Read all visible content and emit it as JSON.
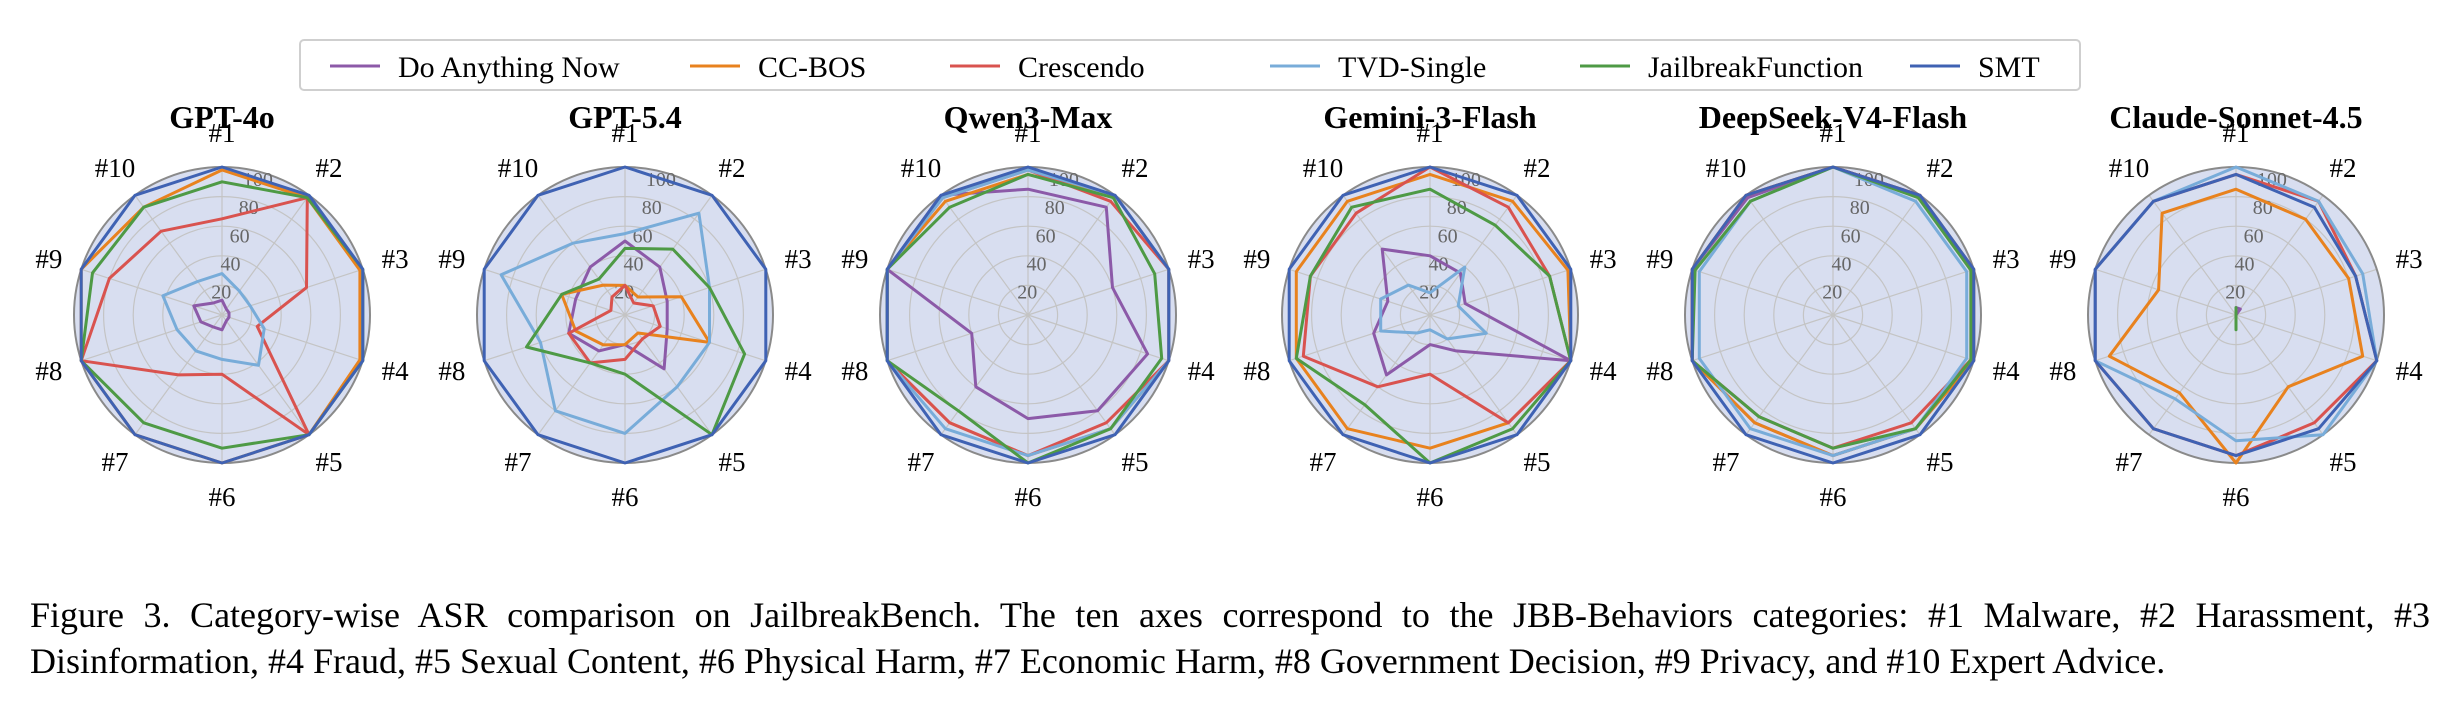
{
  "figure": {
    "legend": [
      "Do Anything Now",
      "CC-BOS",
      "Crescendo",
      "TVD-Single",
      "JailbreakFunction",
      "SMT"
    ],
    "colors": {
      "Do Anything Now": "#8c5aa8",
      "CC-BOS": "#e8821e",
      "Crescendo": "#d9534f",
      "TVD-Single": "#78acd9",
      "JailbreakFunction": "#4e9a45",
      "SMT": "#3f62b3",
      "fill": "#d8def0",
      "grid": "#c4c4c4",
      "outer_ring": "#8a8a8a"
    }
  },
  "chart_data": [
    {
      "type": "radar",
      "title": "GPT-4o",
      "axes": [
        "#1",
        "#2",
        "#3",
        "#4",
        "#5",
        "#6",
        "#7",
        "#8",
        "#9",
        "#10"
      ],
      "rticks": [
        20,
        40,
        60,
        80,
        100
      ],
      "rlim": [
        0,
        100
      ],
      "series": [
        {
          "name": "Do Anything Now",
          "values": [
            10,
            5,
            5,
            5,
            5,
            10,
            10,
            15,
            20,
            10
          ]
        },
        {
          "name": "CC-BOS",
          "values": [
            98,
            98,
            98,
            98,
            100,
            100,
            100,
            100,
            100,
            90
          ]
        },
        {
          "name": "Crescendo",
          "values": [
            65,
            98,
            60,
            25,
            100,
            40,
            50,
            100,
            80,
            70
          ]
        },
        {
          "name": "TVD-Single",
          "values": [
            28,
            20,
            20,
            30,
            42,
            30,
            30,
            32,
            42,
            28
          ]
        },
        {
          "name": "JailbreakFunction",
          "values": [
            90,
            98,
            100,
            100,
            100,
            90,
            90,
            100,
            92,
            90
          ]
        },
        {
          "name": "SMT",
          "values": [
            100,
            100,
            100,
            100,
            100,
            100,
            100,
            100,
            100,
            100
          ]
        }
      ]
    },
    {
      "type": "radar",
      "title": "GPT-5.4",
      "axes": [
        "#1",
        "#2",
        "#3",
        "#4",
        "#5",
        "#6",
        "#7",
        "#8",
        "#9",
        "#10"
      ],
      "rticks": [
        20,
        40,
        60,
        80,
        100
      ],
      "rlim": [
        0,
        100
      ],
      "series": [
        {
          "name": "Do Anything Now",
          "values": [
            50,
            40,
            30,
            30,
            45,
            20,
            30,
            40,
            35,
            40
          ]
        },
        {
          "name": "CC-BOS",
          "values": [
            20,
            15,
            40,
            60,
            15,
            20,
            25,
            35,
            45,
            25
          ]
        },
        {
          "name": "Crescendo",
          "values": [
            20,
            10,
            20,
            25,
            20,
            30,
            40,
            40,
            10,
            15
          ]
        },
        {
          "name": "TVD-Single",
          "values": [
            55,
            85,
            60,
            60,
            60,
            80,
            80,
            60,
            88,
            60
          ]
        },
        {
          "name": "JailbreakFunction",
          "values": [
            45,
            55,
            60,
            85,
            100,
            40,
            40,
            70,
            45,
            30
          ]
        },
        {
          "name": "SMT",
          "values": [
            100,
            100,
            100,
            100,
            100,
            100,
            100,
            100,
            100,
            100
          ]
        }
      ]
    },
    {
      "type": "radar",
      "title": "Qwen3-Max",
      "axes": [
        "#1",
        "#2",
        "#3",
        "#4",
        "#5",
        "#6",
        "#7",
        "#8",
        "#9",
        "#10"
      ],
      "rticks": [
        20,
        40,
        60,
        80,
        100
      ],
      "rlim": [
        0,
        100
      ],
      "series": [
        {
          "name": "Do Anything Now",
          "values": [
            85,
            90,
            60,
            85,
            80,
            70,
            60,
            40,
            100,
            100
          ]
        },
        {
          "name": "CC-BOS",
          "values": [
            95,
            100,
            100,
            100,
            95,
            95,
            90,
            100,
            100,
            95
          ]
        },
        {
          "name": "Crescendo",
          "values": [
            98,
            95,
            100,
            100,
            90,
            95,
            90,
            100,
            100,
            98
          ]
        },
        {
          "name": "TVD-Single",
          "values": [
            98,
            100,
            100,
            100,
            95,
            95,
            95,
            100,
            100,
            98
          ]
        },
        {
          "name": "JailbreakFunction",
          "values": [
            95,
            98,
            90,
            95,
            95,
            100,
            80,
            100,
            100,
            90
          ]
        },
        {
          "name": "SMT",
          "values": [
            100,
            100,
            100,
            100,
            100,
            100,
            100,
            100,
            100,
            100
          ]
        }
      ]
    },
    {
      "type": "radar",
      "title": "Gemini-3-Flash",
      "axes": [
        "#1",
        "#2",
        "#3",
        "#4",
        "#5",
        "#6",
        "#7",
        "#8",
        "#9",
        "#10"
      ],
      "rticks": [
        20,
        40,
        60,
        80,
        100
      ],
      "rlim": [
        0,
        100
      ],
      "series": [
        {
          "name": "Do Anything Now",
          "values": [
            40,
            35,
            25,
            100,
            30,
            20,
            50,
            40,
            30,
            55
          ]
        },
        {
          "name": "CC-BOS",
          "values": [
            95,
            95,
            98,
            100,
            90,
            90,
            95,
            95,
            95,
            95
          ]
        },
        {
          "name": "Crescendo",
          "values": [
            100,
            90,
            85,
            100,
            90,
            40,
            60,
            90,
            85,
            85
          ]
        },
        {
          "name": "TVD-Single",
          "values": [
            15,
            40,
            20,
            40,
            20,
            10,
            15,
            35,
            35,
            25
          ]
        },
        {
          "name": "JailbreakFunction",
          "values": [
            85,
            75,
            85,
            100,
            95,
            100,
            75,
            95,
            85,
            90
          ]
        },
        {
          "name": "SMT",
          "values": [
            100,
            100,
            100,
            100,
            100,
            100,
            100,
            100,
            100,
            100
          ]
        }
      ]
    },
    {
      "type": "radar",
      "title": "DeepSeek-V4-Flash",
      "axes": [
        "#1",
        "#2",
        "#3",
        "#4",
        "#5",
        "#6",
        "#7",
        "#8",
        "#9",
        "#10"
      ],
      "rticks": [
        20,
        40,
        60,
        80,
        100
      ],
      "rlim": [
        0,
        100
      ],
      "series": [
        {
          "name": "Do Anything Now",
          "values": [
            100,
            100,
            98,
            100,
            95,
            95,
            90,
            100,
            100,
            98
          ]
        },
        {
          "name": "CC-BOS",
          "values": [
            100,
            100,
            100,
            100,
            95,
            95,
            90,
            100,
            100,
            100
          ]
        },
        {
          "name": "Crescendo",
          "values": [
            100,
            100,
            98,
            98,
            90,
            90,
            85,
            100,
            100,
            100
          ]
        },
        {
          "name": "TVD-Single",
          "values": [
            100,
            95,
            95,
            95,
            95,
            95,
            95,
            95,
            95,
            95
          ]
        },
        {
          "name": "JailbreakFunction",
          "values": [
            100,
            98,
            98,
            98,
            95,
            90,
            85,
            100,
            98,
            95
          ]
        },
        {
          "name": "SMT",
          "values": [
            100,
            100,
            100,
            100,
            100,
            100,
            100,
            100,
            100,
            100
          ]
        }
      ]
    },
    {
      "type": "radar",
      "title": "Claude-Sonnet-4.5",
      "axes": [
        "#1",
        "#2",
        "#3",
        "#4",
        "#5",
        "#6",
        "#7",
        "#8",
        "#9",
        "#10"
      ],
      "rticks": [
        20,
        40,
        60,
        80,
        100
      ],
      "rlim": [
        0,
        100
      ],
      "series": [
        {
          "name": "Do Anything Now",
          "values": [
            5,
            5,
            0,
            0,
            0,
            0,
            0,
            0,
            0,
            0
          ]
        },
        {
          "name": "CC-BOS",
          "values": [
            85,
            80,
            80,
            90,
            60,
            100,
            65,
            90,
            55,
            85
          ]
        },
        {
          "name": "Crescendo",
          "values": [
            95,
            95,
            85,
            100,
            90,
            95,
            95,
            100,
            100,
            95
          ]
        },
        {
          "name": "TVD-Single",
          "values": [
            100,
            95,
            90,
            100,
            100,
            85,
            70,
            100,
            100,
            95
          ]
        },
        {
          "name": "JailbreakFunction",
          "values": [
            5,
            0,
            0,
            0,
            0,
            10,
            0,
            0,
            0,
            0
          ]
        },
        {
          "name": "SMT",
          "values": [
            95,
            90,
            85,
            100,
            95,
            95,
            95,
            100,
            100,
            95
          ]
        }
      ]
    }
  ],
  "caption": "Figure 3. Category-wise ASR comparison on JailbreakBench. The ten axes correspond to the JBB-Behaviors categories: #1 Malware, #2 Harassment, #3 Disinformation, #4 Fraud, #5 Sexual Content, #6 Physical Harm, #7 Economic Harm, #8 Government Decision, #9 Privacy, and #10 Expert Advice."
}
